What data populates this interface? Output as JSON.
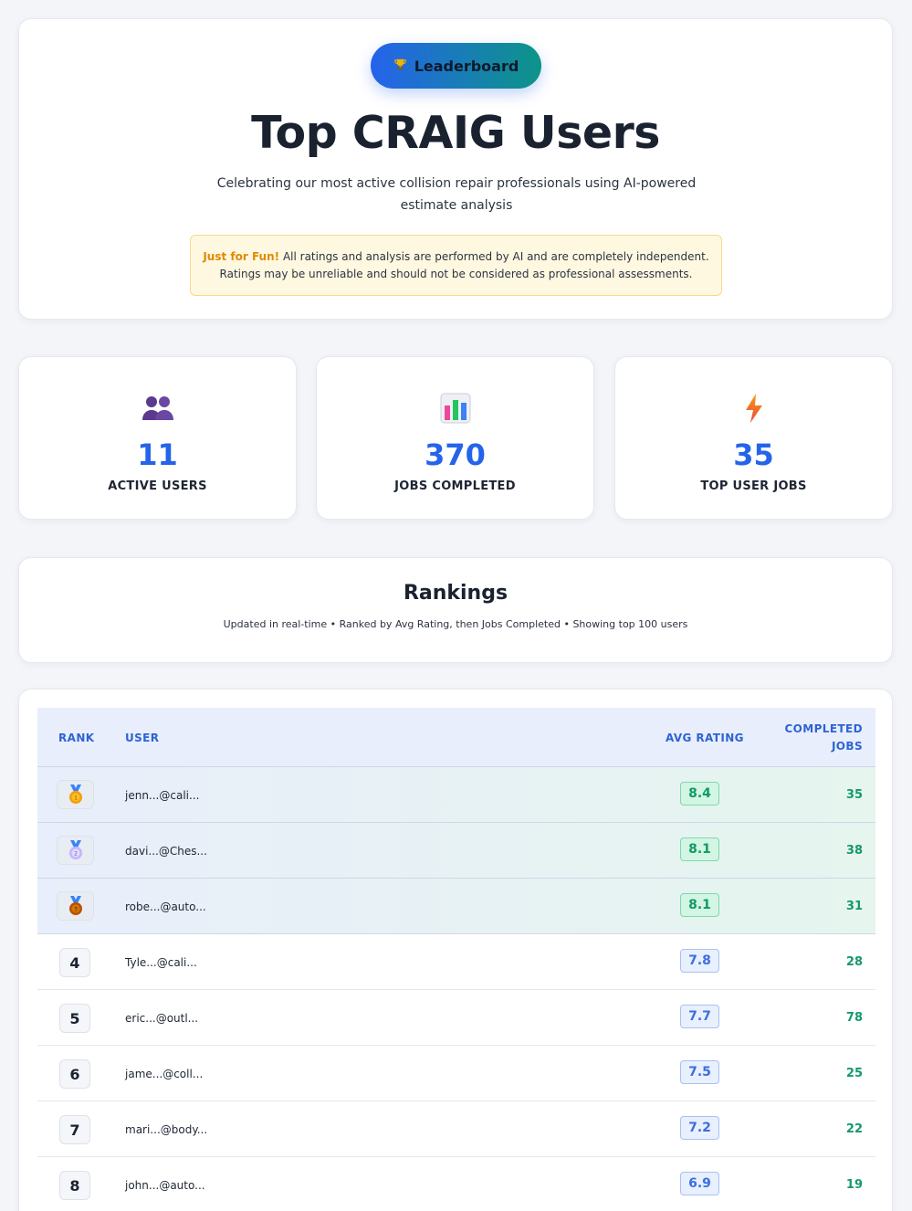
{
  "hero": {
    "badge_icon": "trophy-icon",
    "badge_label": "Leaderboard",
    "title": "Top CRAIG Users",
    "subtitle": "Celebrating our most active collision repair professionals using AI-powered estimate analysis",
    "notice_strong": "Just for Fun!",
    "notice_line1": " All ratings and analysis are performed by AI and are completely independent.",
    "notice_line2": "Ratings may be unreliable and should not be considered as professional assessments."
  },
  "stats": [
    {
      "icon": "users-icon",
      "value": "11",
      "label": "ACTIVE USERS"
    },
    {
      "icon": "bar-chart-icon",
      "value": "370",
      "label": "JOBS COMPLETED"
    },
    {
      "icon": "lightning-icon",
      "value": "35",
      "label": "TOP USER JOBS"
    }
  ],
  "rankings": {
    "title": "Rankings",
    "subtitle": "Updated in real-time • Ranked by Avg Rating, then Jobs Completed • Showing top 100 users"
  },
  "table": {
    "headers": {
      "rank": "RANK",
      "user": "USER",
      "rating": "AVG RATING",
      "jobs_line1": "COMPLETED",
      "jobs_line2": "JOBS"
    },
    "rows": [
      {
        "rank": "1",
        "user": "jenn...@cali...",
        "rating": "8.4",
        "jobs": "35"
      },
      {
        "rank": "2",
        "user": "davi...@Ches...",
        "rating": "8.1",
        "jobs": "38"
      },
      {
        "rank": "3",
        "user": "robe...@auto...",
        "rating": "8.1",
        "jobs": "31"
      },
      {
        "rank": "4",
        "user": "Tyle...@cali...",
        "rating": "7.8",
        "jobs": "28"
      },
      {
        "rank": "5",
        "user": "eric...@outl...",
        "rating": "7.7",
        "jobs": "78"
      },
      {
        "rank": "6",
        "user": "jame...@coll...",
        "rating": "7.5",
        "jobs": "25"
      },
      {
        "rank": "7",
        "user": "mari...@body...",
        "rating": "7.2",
        "jobs": "22"
      },
      {
        "rank": "8",
        "user": "john...@auto...",
        "rating": "6.9",
        "jobs": "19"
      }
    ]
  },
  "colors": {
    "accent": "#2563eb",
    "gradient_end": "#0d9488",
    "gold": "#f59e0b",
    "silver": "#c4b5fd",
    "bronze": "#b45309",
    "jobs_green": "#14996a"
  }
}
